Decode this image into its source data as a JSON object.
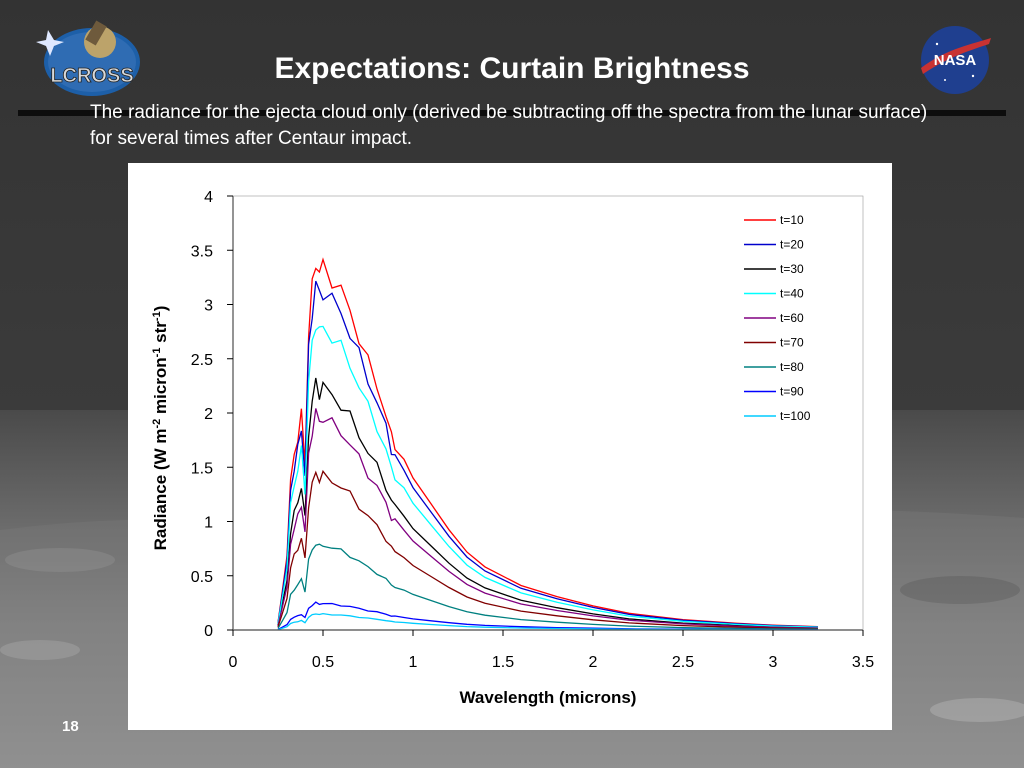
{
  "slide": {
    "title": "Expectations: Curtain Brightness",
    "subtitle": "The radiance for the ejecta cloud only (derived be subtracting off the spectra from the lunar surface) for several times after Centaur impact.",
    "page_number": "18",
    "logos": {
      "left": "LCROSS",
      "right": "NASA"
    }
  },
  "colors": {
    "background_top": "#333333",
    "title_text": "#ffffff",
    "rule": "#0d0d0d"
  },
  "chart_data": {
    "type": "line",
    "title": "",
    "xlabel": "Wavelength (microns)",
    "ylabel": {
      "prefix": "Radiance (W m",
      "sup1": "-2",
      "mid": " micron",
      "sup2": "-1",
      "mid2": " str",
      "sup3": "-1",
      "suffix": ")"
    },
    "xlim": [
      0,
      3.5
    ],
    "ylim": [
      0,
      4
    ],
    "x_ticks": [
      "0",
      "0.5",
      "1",
      "1.5",
      "2",
      "2.5",
      "3",
      "3.5"
    ],
    "y_ticks": [
      "0",
      "0.5",
      "1",
      "1.5",
      "2",
      "2.5",
      "3",
      "3.5",
      "4"
    ],
    "grid": false,
    "legend_position": "top-right",
    "x_range": [
      0.25,
      3.25
    ],
    "shape_x": [
      0.25,
      0.27,
      0.3,
      0.32,
      0.34,
      0.36,
      0.38,
      0.4,
      0.42,
      0.44,
      0.46,
      0.48,
      0.5,
      0.55,
      0.6,
      0.65,
      0.7,
      0.75,
      0.8,
      0.85,
      0.88,
      0.9,
      0.95,
      1.0,
      1.1,
      1.2,
      1.3,
      1.4,
      1.6,
      1.8,
      2.0,
      2.2,
      2.5,
      2.8,
      3.0,
      3.25
    ],
    "shape_relative": [
      0.02,
      0.09,
      0.2,
      0.4,
      0.47,
      0.52,
      0.58,
      0.45,
      0.8,
      0.92,
      1.0,
      0.96,
      0.98,
      0.95,
      0.91,
      0.86,
      0.79,
      0.72,
      0.66,
      0.58,
      0.52,
      0.5,
      0.46,
      0.41,
      0.34,
      0.27,
      0.21,
      0.17,
      0.12,
      0.09,
      0.065,
      0.045,
      0.028,
      0.018,
      0.013,
      0.009
    ],
    "series": [
      {
        "name": "t=10",
        "peak": 3.42,
        "color": "#ff0000"
      },
      {
        "name": "t=20",
        "peak": 3.2,
        "color": "#0000cc"
      },
      {
        "name": "t=30",
        "peak": 2.28,
        "color": "#000000"
      },
      {
        "name": "t=40",
        "peak": 2.85,
        "color": "#00ffff"
      },
      {
        "name": "t=60",
        "peak": 2.0,
        "color": "#800080"
      },
      {
        "name": "t=70",
        "peak": 1.45,
        "color": "#800000"
      },
      {
        "name": "t=80",
        "peak": 0.8,
        "color": "#008080"
      },
      {
        "name": "t=90",
        "peak": 0.25,
        "color": "#0000ff"
      },
      {
        "name": "t=100",
        "peak": 0.15,
        "color": "#00ccff"
      }
    ]
  }
}
